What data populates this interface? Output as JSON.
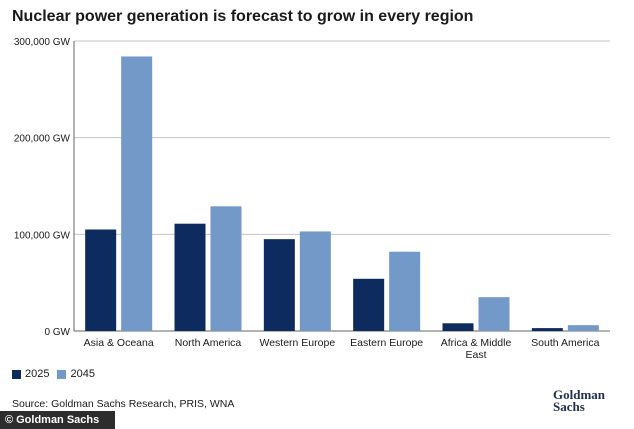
{
  "chart_data": {
    "type": "bar",
    "title": "Nuclear power generation is forecast to grow in every region",
    "xlabel": "",
    "ylabel": "",
    "ylim": [
      0,
      300000
    ],
    "yticks": [
      0,
      100000,
      200000,
      300000
    ],
    "ytick_labels": [
      "0 GW",
      "100,000 GW",
      "200,000 GW",
      "300,000 GW"
    ],
    "categories": [
      "Asia & Oceana",
      "North America",
      "Western Europe",
      "Eastern Europe",
      "Africa & Middle East",
      "South America"
    ],
    "category_lines": [
      [
        "Asia & Oceana"
      ],
      [
        "North America"
      ],
      [
        "Western Europe"
      ],
      [
        "Eastern Europe"
      ],
      [
        "Africa & Middle",
        "East"
      ],
      [
        "South America"
      ]
    ],
    "series": [
      {
        "name": "2025",
        "color": "#0d2b5e",
        "values": [
          105000,
          111000,
          95000,
          54000,
          8000,
          3000
        ]
      },
      {
        "name": "2045",
        "color": "#7399c9",
        "values": [
          284000,
          129000,
          103000,
          82000,
          35000,
          6000
        ]
      }
    ],
    "grid": true,
    "legend": "bottom-left"
  },
  "source": "Source: Goldman Sachs Research, PRIS, WNA",
  "logo": {
    "line1": "Goldman",
    "line2": "Sachs"
  },
  "footer": {
    "text": "Goldman Sachs",
    "icon": "copyright-icon",
    "glyph": "©"
  }
}
